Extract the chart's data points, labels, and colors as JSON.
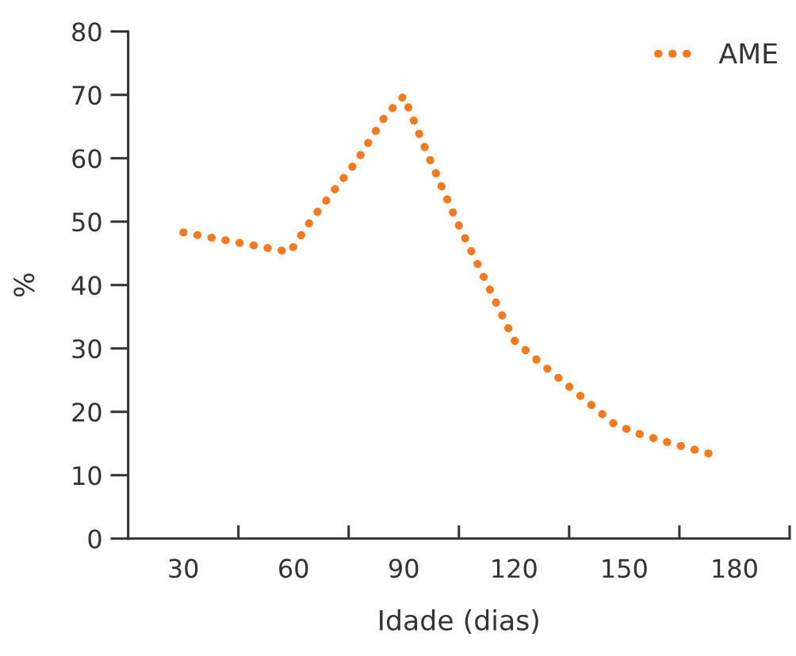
{
  "chart_data": {
    "type": "line",
    "xlabel": "Idade (dias)",
    "ylabel": "%",
    "xlim": [
      15,
      195
    ],
    "xticks": [
      30,
      60,
      90,
      120,
      150,
      180,
      {
        "value": 45,
        "label": null
      },
      {
        "value": 75,
        "label": null
      },
      {
        "value": 105,
        "label": null
      },
      {
        "value": 135,
        "label": null
      },
      {
        "value": 165,
        "label": null
      },
      {
        "value": 195,
        "label": null
      }
    ],
    "ylim": [
      0,
      80
    ],
    "yticks": [
      0,
      10,
      20,
      30,
      40,
      50,
      60,
      70,
      80
    ],
    "legend": "top right",
    "line_style": "dotted",
    "grid": false,
    "series": [
      {
        "name": "AME",
        "color": "#f47a20",
        "x": [
          30,
          59,
          65,
          77,
          85,
          90,
          96,
          104,
          113,
          120,
          128,
          136,
          147,
          153,
          163,
          175
        ],
        "values": [
          48.3,
          45.2,
          50.4,
          59.4,
          66.7,
          69.8,
          61.3,
          50.6,
          39.8,
          31.3,
          27.3,
          23.5,
          18.2,
          16.7,
          15,
          13.1
        ]
      }
    ]
  }
}
